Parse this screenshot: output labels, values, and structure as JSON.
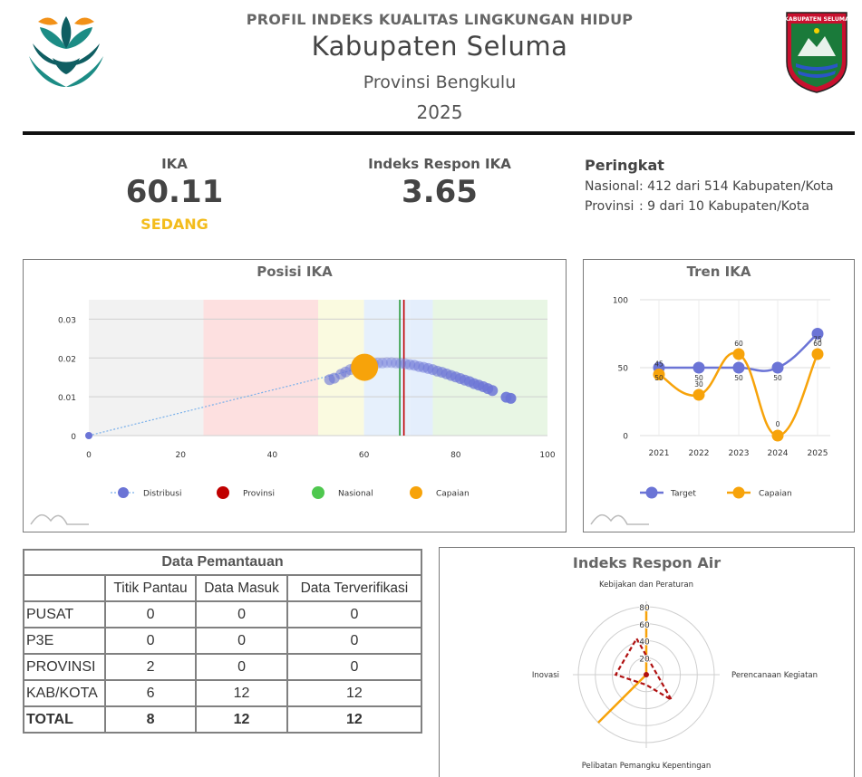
{
  "header": {
    "title": "PROFIL INDEKS KUALITAS LINGKUNGAN HIDUP",
    "region": "Kabupaten Seluma",
    "province": "Provinsi Bengkulu",
    "year": "2025",
    "emblem_text": "KABUPATEN SELUMA"
  },
  "metrics": {
    "ika_label": "IKA",
    "ika_value": "60.11",
    "ika_category": "SEDANG",
    "respon_label": "Indeks Respon IKA",
    "respon_value": "3.65"
  },
  "ranking": {
    "title": "Peringkat",
    "national_key": "Nasional",
    "national_value": ": 412 dari 514 Kabupaten/Kota",
    "province_key": "Provinsi",
    "province_value": ": 9 dari 10 Kabupaten/Kota"
  },
  "colors": {
    "distribution": "#6b74d6",
    "province": "#c00000",
    "national": "#4fc84f",
    "achievement": "#f7a30a",
    "target": "#6b74d6",
    "category": "#f3bc1c"
  },
  "chart_data": [
    {
      "id": "posisi",
      "type": "scatter",
      "title": "Posisi IKA",
      "xlim": [
        0,
        100
      ],
      "ylim": [
        0,
        0.035
      ],
      "x_ticks": [
        0,
        20,
        40,
        60,
        80,
        100
      ],
      "y_ticks": [
        0,
        0.01,
        0.02,
        0.03
      ],
      "y_tick_labels": [
        "0",
        "0.01",
        "0.02",
        "0.03"
      ],
      "bands": [
        {
          "from": 0,
          "to": 25,
          "color": "#f2f2f2"
        },
        {
          "from": 25,
          "to": 50,
          "color": "#fde0e0"
        },
        {
          "from": 50,
          "to": 60,
          "color": "#fafae0"
        },
        {
          "from": 60,
          "to": 70,
          "color": "#e6f0fc"
        },
        {
          "from": 70,
          "to": 75,
          "color": "#e4eefc"
        },
        {
          "from": 75,
          "to": 100,
          "color": "#e8f6e4"
        }
      ],
      "distribution": {
        "name": "Distribusi",
        "x": [
          52.5,
          53.5,
          55.0,
          56.0,
          57.0,
          58.0,
          59.0,
          60.0,
          61.0,
          62.0,
          63.0,
          64.0,
          65.0,
          66.0,
          67.0,
          68.0,
          69.0,
          70.0,
          71.0,
          72.0,
          73.0,
          74.0,
          75.0,
          76.0,
          77.0,
          78.0,
          79.0,
          80.0,
          81.0,
          82.0,
          83.0,
          84.0,
          85.0,
          86.0,
          87.0,
          88.0,
          91.0,
          92.0
        ],
        "y": [
          0.0144,
          0.0148,
          0.0158,
          0.0164,
          0.017,
          0.0175,
          0.0179,
          0.0182,
          0.0184,
          0.0186,
          0.0187,
          0.0187,
          0.0188,
          0.0188,
          0.0187,
          0.0186,
          0.0185,
          0.0183,
          0.0181,
          0.0178,
          0.0176,
          0.0173,
          0.017,
          0.0166,
          0.0163,
          0.0159,
          0.0155,
          0.0151,
          0.0147,
          0.0143,
          0.0139,
          0.0134,
          0.013,
          0.0126,
          0.0121,
          0.0116,
          0.0099,
          0.0096
        ]
      },
      "trend_line": {
        "x": [
          0,
          60
        ],
        "y": [
          0,
          0.0176
        ]
      },
      "province": {
        "name": "Provinsi",
        "x": 68.7
      },
      "national": {
        "name": "Nasional",
        "x": 67.8
      },
      "achievement": {
        "name": "Capaian",
        "x": 60.11,
        "y": 0.0176
      },
      "legend": [
        "Distribusi",
        "Provinsi",
        "Nasional",
        "Capaian"
      ],
      "legend_position": "bottom"
    },
    {
      "id": "tren",
      "type": "line",
      "title": "Tren IKA",
      "categories": [
        "2021",
        "2022",
        "2023",
        "2024",
        "2025"
      ],
      "ylim": [
        0,
        100
      ],
      "y_ticks": [
        0,
        50,
        100
      ],
      "series": [
        {
          "name": "Target",
          "values": [
            50,
            50,
            50,
            50,
            75
          ],
          "labels": [
            "50",
            "50",
            "50",
            "50",
            "75"
          ]
        },
        {
          "name": "Capaian",
          "values": [
            45,
            30,
            60,
            0,
            60
          ],
          "labels": [
            "45",
            "30",
            "60",
            "0",
            "60"
          ]
        }
      ],
      "legend_position": "bottom"
    },
    {
      "id": "respon-air",
      "type": "radar",
      "title": "Indeks Respon Air",
      "axes": [
        "Kebijakan dan Peraturan",
        "Perencanaan Kegiatan",
        "Pelibatan Pemangku Kepentingan",
        "Inovasi"
      ],
      "r_ticks": [
        20,
        40,
        60,
        80
      ],
      "rmax": 80,
      "series": [
        {
          "name": "Target",
          "values": [
            80,
            0,
            80,
            0
          ]
        },
        {
          "name": "Capaian",
          "values": [
            44,
            42,
            12,
            36
          ]
        }
      ]
    }
  ],
  "table": {
    "title": "Data Pemantauan",
    "headers": [
      "",
      "Titik Pantau",
      "Data Masuk",
      "Data Terverifikasi"
    ],
    "rows": [
      [
        "PUSAT",
        "0",
        "0",
        "0"
      ],
      [
        "P3E",
        "0",
        "0",
        "0"
      ],
      [
        "PROVINSI",
        "2",
        "0",
        "0"
      ],
      [
        "KAB/KOTA",
        "6",
        "12",
        "12"
      ]
    ],
    "total": [
      "TOTAL",
      "8",
      "12",
      "12"
    ]
  }
}
